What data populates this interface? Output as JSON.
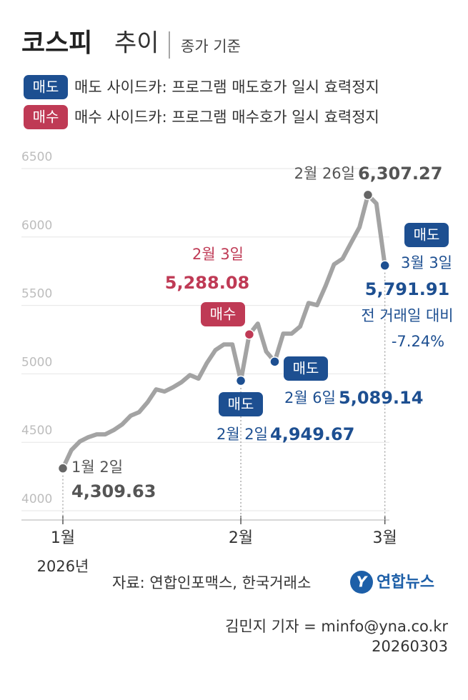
{
  "chart_data": {
    "type": "line",
    "title": {
      "bold": "코스피",
      "light": "추이"
    },
    "subtitle": "종가 기준",
    "markers": [
      {
        "label": "매도",
        "text": "매도 사이드카: 프로그램 매도호가 일시 효력정지",
        "color": "#1d4f91"
      },
      {
        "label": "매수",
        "text": "매수 사이드카: 프로그램 매수호가 일시 효력정지",
        "color": "#bf3a55"
      }
    ],
    "categories": [
      "1월",
      null,
      null,
      null,
      null,
      null,
      null,
      null,
      null,
      null,
      null,
      null,
      null,
      null,
      null,
      null,
      null,
      null,
      null,
      null,
      null,
      "2월",
      null,
      null,
      null,
      null,
      null,
      null,
      null,
      null,
      null,
      null,
      null,
      null,
      null,
      null,
      null,
      null,
      "3월"
    ],
    "year_label": "2026년",
    "color": "#a3a3a3",
    "values": [
      4309.63,
      4443,
      4506,
      4537,
      4558,
      4558,
      4589,
      4631,
      4694,
      4720,
      4793,
      4887,
      4871,
      4902,
      4939,
      4991,
      4965,
      5080,
      5174,
      5215,
      5215,
      4949.67,
      5288.08,
      5367,
      5163,
      5089.14,
      5294,
      5294,
      5346,
      5518,
      5502,
      5643,
      5800,
      5841,
      5956,
      6071,
      6307.27,
      6244,
      5791.91
    ],
    "value_labels": [
      "4,309.63",
      null,
      null,
      null,
      null,
      null,
      null,
      null,
      null,
      null,
      null,
      null,
      null,
      null,
      null,
      null,
      null,
      null,
      null,
      null,
      null,
      "4,949.67",
      "5,288.08",
      null,
      null,
      "5,089.14",
      null,
      null,
      null,
      null,
      null,
      null,
      null,
      null,
      null,
      null,
      "6,307.27",
      null,
      "5,791.91"
    ],
    "point_dates": [
      "1월 2일",
      null,
      null,
      null,
      null,
      null,
      null,
      null,
      null,
      null,
      null,
      null,
      null,
      null,
      null,
      null,
      null,
      null,
      null,
      null,
      null,
      "2월 2일",
      "2월 3일",
      null,
      null,
      "2월 6일",
      null,
      null,
      null,
      null,
      null,
      null,
      null,
      null,
      null,
      null,
      "2월 26일",
      null,
      "3월 3일"
    ],
    "point_badges": [
      null,
      null,
      null,
      null,
      null,
      null,
      null,
      null,
      null,
      null,
      null,
      null,
      null,
      null,
      null,
      null,
      null,
      null,
      null,
      null,
      null,
      "매도",
      "매수",
      null,
      null,
      "매도",
      null,
      null,
      null,
      null,
      null,
      null,
      null,
      null,
      null,
      null,
      null,
      null,
      "매도"
    ],
    "change_label": "전 거래일 대비",
    "change": {
      "value": -7.24,
      "label": "-7.24%"
    },
    "ylim": [
      4000,
      6500
    ],
    "yticks": [
      4000,
      4500,
      5000,
      5500,
      6000,
      6500
    ],
    "grid": true,
    "source": "자료: 연합인포맥스, 한국거래소",
    "logo": "연합뉴스",
    "credit": "김민지 기자 = minfo@yna.co.kr",
    "date": "20260303"
  }
}
